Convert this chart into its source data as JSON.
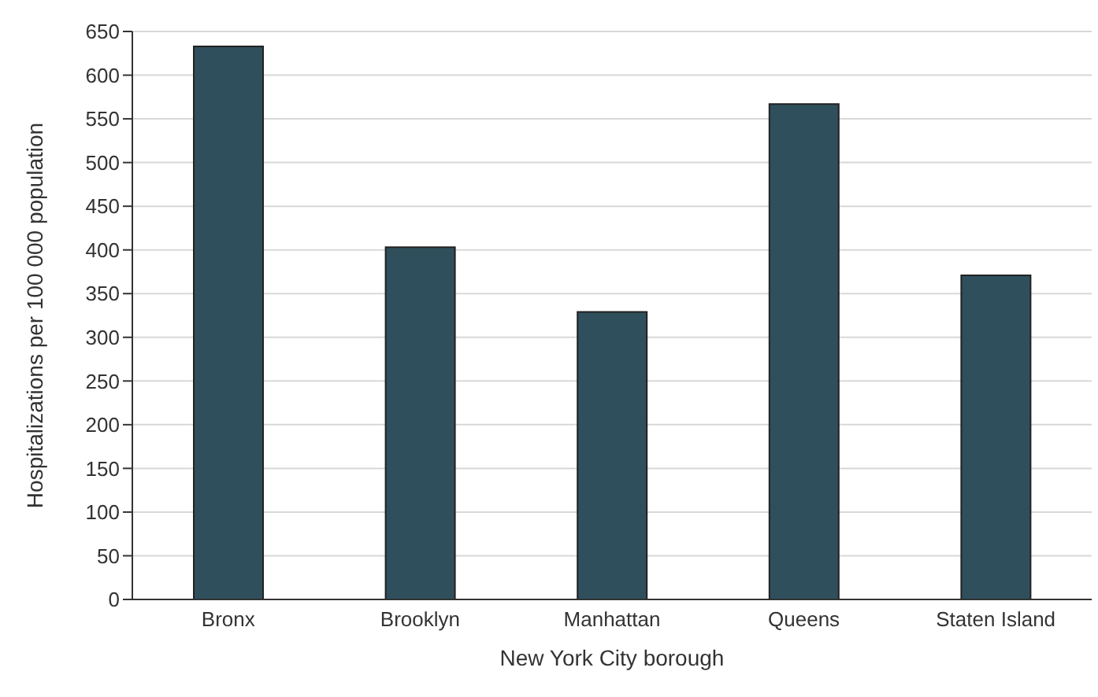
{
  "chart_data": {
    "type": "bar",
    "xlabel": "New York City borough",
    "ylabel": "Hospitalizations per 100 000 population",
    "categories": [
      "Bronx",
      "Brooklyn",
      "Manhattan",
      "Queens",
      "Staten Island"
    ],
    "values": [
      633,
      403,
      329,
      567,
      371
    ],
    "color": "#2f4f5c",
    "ylim": [
      0,
      650
    ],
    "yticks": [
      0,
      50,
      100,
      150,
      200,
      250,
      300,
      350,
      400,
      450,
      500,
      550,
      600,
      650
    ],
    "grid": "y"
  }
}
